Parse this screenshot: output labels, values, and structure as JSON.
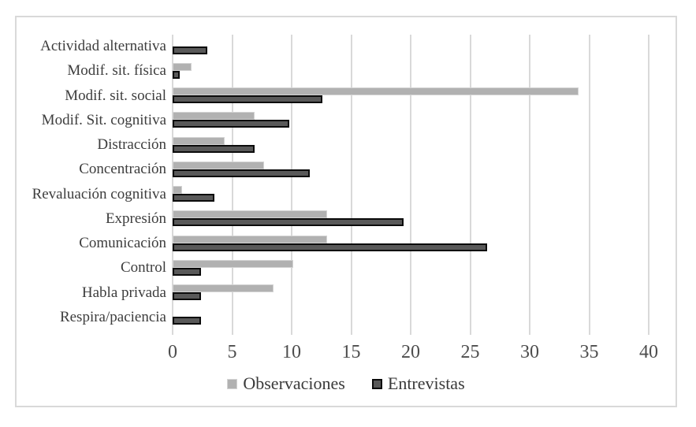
{
  "chart_data": {
    "type": "bar",
    "orientation": "horizontal",
    "title": "",
    "xlabel": "",
    "ylabel": "",
    "categories": [
      "Actividad alternativa",
      "Modif. sit. física",
      "Modif. sit. social",
      "Modif. Sit. cognitiva",
      "Distracción",
      "Concentración",
      "Revaluación cognitiva",
      "Expresión",
      "Comunicación",
      "Control",
      "Habla privada",
      "Respira/paciencia"
    ],
    "series": [
      {
        "name": "Observaciones",
        "color": "#b1b1b1",
        "border_color": "#d3d3d3",
        "values": [
          0,
          1.6,
          34.1,
          6.9,
          4.4,
          7.7,
          0.8,
          13,
          13,
          10.1,
          8.5,
          0
        ]
      },
      {
        "name": "Entrevistas",
        "color": "#595959",
        "border_color": "#0b0b0b",
        "values": [
          2.9,
          0.6,
          12.6,
          9.8,
          6.9,
          11.5,
          3.5,
          19.4,
          26.4,
          2.4,
          2.4,
          2.4
        ]
      }
    ],
    "xlim": [
      0,
      40
    ],
    "xticks": [
      0,
      5,
      10,
      15,
      20,
      25,
      30,
      35,
      40
    ],
    "grid": true,
    "gridline_color": "#d9d9d9",
    "frame_color": "#d9d9d9",
    "legend_position": "bottom"
  }
}
